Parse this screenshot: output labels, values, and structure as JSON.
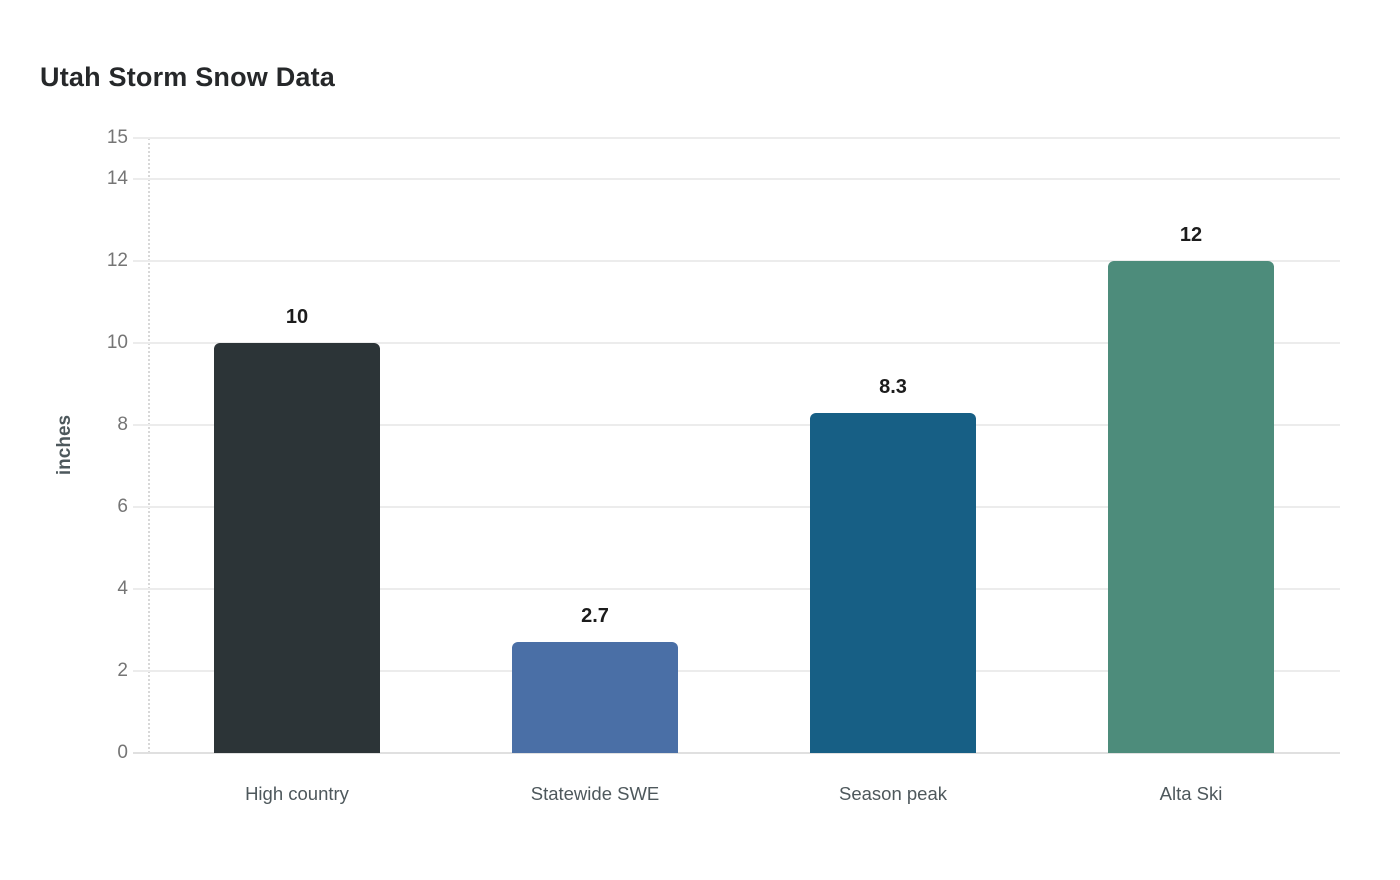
{
  "chart_data": {
    "type": "bar",
    "title": "Utah Storm Snow Data",
    "xlabel": "",
    "ylabel": "inches",
    "categories": [
      "High country",
      "Statewide SWE",
      "Season peak",
      "Alta Ski"
    ],
    "values": [
      10,
      2.7,
      8.3,
      12
    ],
    "value_labels": [
      "10",
      "2.7",
      "8.3",
      "12"
    ],
    "bar_colors": [
      "#2c3437",
      "#4a6fa6",
      "#175f85",
      "#4d8c7b"
    ],
    "ylim": [
      0,
      15
    ],
    "yticks": [
      0,
      2,
      4,
      6,
      8,
      10,
      12,
      14,
      15
    ],
    "ytick_labels": [
      "0",
      "2",
      "4",
      "6",
      "8",
      "10",
      "12",
      "14",
      "15"
    ],
    "grid": true,
    "legend_position": "none",
    "colors": {
      "background": "#ffffff",
      "title_text": "#26282a",
      "ylabel_text": "#4d585c",
      "tick_text": "#757575",
      "category_text": "#4e585c",
      "value_text": "#1c1c1c",
      "grid": "#ececec",
      "zero_line": "#e0e0e0",
      "axis_dotted": "#d8d8d8"
    }
  }
}
